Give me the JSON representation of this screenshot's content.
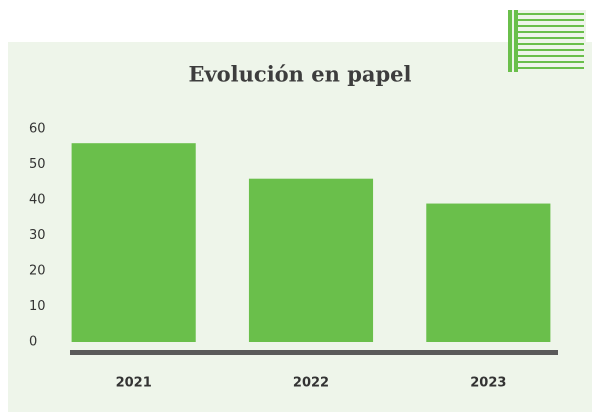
{
  "chart_data": {
    "type": "bar",
    "title": "Evolución en papel",
    "categories": [
      "2021",
      "2022",
      "2023"
    ],
    "values": [
      56,
      46,
      39
    ],
    "color": "#6abf4b",
    "ylim": [
      0,
      60
    ],
    "yticks": [
      0,
      10,
      20,
      30,
      40,
      50,
      60
    ],
    "grid": false
  }
}
